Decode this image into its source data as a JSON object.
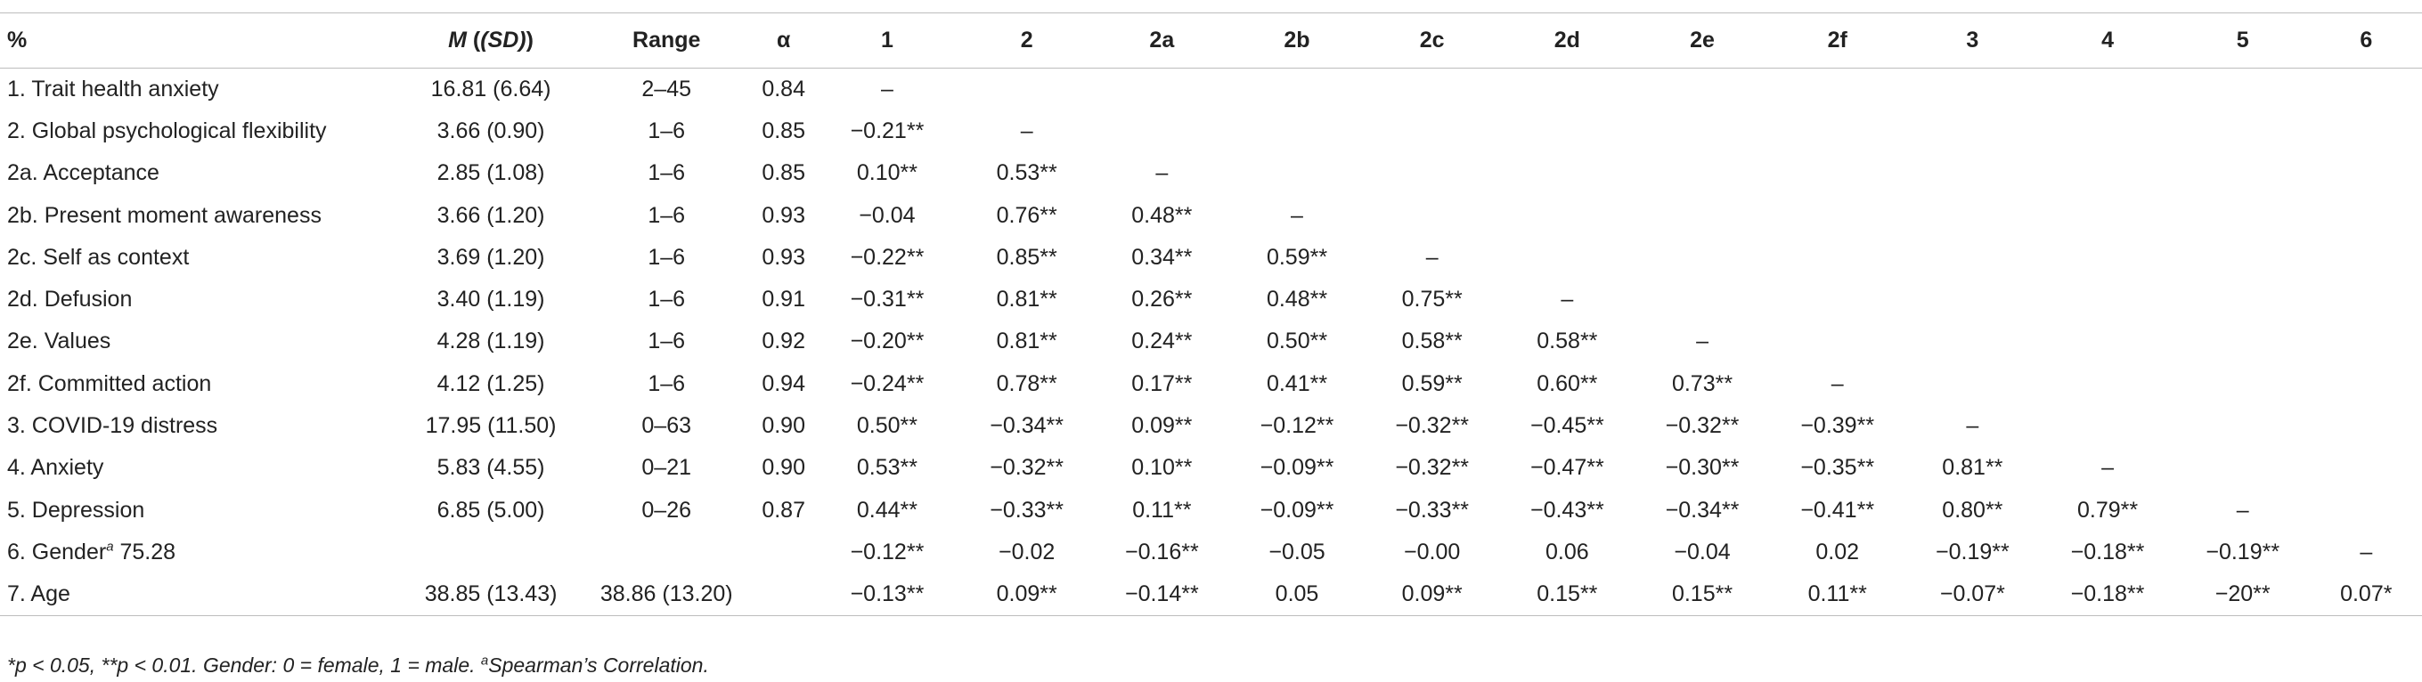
{
  "table": {
    "headers": [
      "%",
      "M",
      "(SD)",
      "Range",
      "α",
      "1",
      "2",
      "2a",
      "2b",
      "2c",
      "2d",
      "2e",
      "2f",
      "3",
      "4",
      "5",
      "6"
    ],
    "rows": [
      {
        "label": "1. Trait health anxiety",
        "msd": "16.81 (6.64)",
        "range": "2–45",
        "alpha": "0.84",
        "c": [
          "–",
          "",
          "",
          "",
          "",
          "",
          "",
          "",
          "",
          "",
          "",
          ""
        ]
      },
      {
        "label": "2. Global psychological flexibility",
        "msd": "3.66 (0.90)",
        "range": "1–6",
        "alpha": "0.85",
        "c": [
          "−0.21**",
          "–",
          "",
          "",
          "",
          "",
          "",
          "",
          "",
          "",
          "",
          ""
        ]
      },
      {
        "label": "2a. Acceptance",
        "msd": "2.85 (1.08)",
        "range": "1–6",
        "alpha": "0.85",
        "c": [
          "0.10**",
          "0.53**",
          "–",
          "",
          "",
          "",
          "",
          "",
          "",
          "",
          "",
          ""
        ]
      },
      {
        "label": "2b. Present moment awareness",
        "msd": "3.66 (1.20)",
        "range": "1–6",
        "alpha": "0.93",
        "c": [
          "−0.04",
          "0.76**",
          "0.48**",
          "–",
          "",
          "",
          "",
          "",
          "",
          "",
          "",
          ""
        ]
      },
      {
        "label": "2c. Self as context",
        "msd": "3.69 (1.20)",
        "range": "1–6",
        "alpha": "0.93",
        "c": [
          "−0.22**",
          "0.85**",
          "0.34**",
          "0.59**",
          "–",
          "",
          "",
          "",
          "",
          "",
          "",
          ""
        ]
      },
      {
        "label": "2d. Defusion",
        "msd": "3.40 (1.19)",
        "range": "1–6",
        "alpha": "0.91",
        "c": [
          "−0.31**",
          "0.81**",
          "0.26**",
          "0.48**",
          "0.75**",
          "–",
          "",
          "",
          "",
          "",
          "",
          ""
        ]
      },
      {
        "label": "2e. Values",
        "msd": "4.28 (1.19)",
        "range": "1–6",
        "alpha": "0.92",
        "c": [
          "−0.20**",
          "0.81**",
          "0.24**",
          "0.50**",
          "0.58**",
          "0.58**",
          "–",
          "",
          "",
          "",
          "",
          ""
        ]
      },
      {
        "label": "2f. Committed action",
        "msd": "4.12 (1.25)",
        "range": "1–6",
        "alpha": "0.94",
        "c": [
          "−0.24**",
          "0.78**",
          "0.17**",
          "0.41**",
          "0.59**",
          "0.60**",
          "0.73**",
          "–",
          "",
          "",
          "",
          ""
        ]
      },
      {
        "label": "3. COVID-19 distress",
        "msd": "17.95 (11.50)",
        "range": "0–63",
        "alpha": "0.90",
        "c": [
          "0.50**",
          "−0.34**",
          "0.09**",
          "−0.12**",
          "−0.32**",
          "−0.45**",
          "−0.32**",
          "−0.39**",
          "–",
          "",
          "",
          ""
        ]
      },
      {
        "label": "4. Anxiety",
        "msd": "5.83 (4.55)",
        "range": "0–21",
        "alpha": "0.90",
        "c": [
          "0.53**",
          "−0.32**",
          "0.10**",
          "−0.09**",
          "−0.32**",
          "−0.47**",
          "−0.30**",
          "−0.35**",
          "0.81**",
          "–",
          "",
          ""
        ]
      },
      {
        "label": "5. Depression",
        "msd": "6.85 (5.00)",
        "range": "0–26",
        "alpha": "0.87",
        "c": [
          "0.44**",
          "−0.33**",
          "0.11**",
          "−0.09**",
          "−0.33**",
          "−0.43**",
          "−0.34**",
          "−0.41**",
          "0.80**",
          "0.79**",
          "–",
          ""
        ]
      },
      {
        "label": "6. Gender",
        "label_sup": "a",
        "label_suffix": " 75.28",
        "msd": "",
        "range": "",
        "alpha": "",
        "c": [
          "−0.12**",
          "−0.02",
          "−0.16**",
          "−0.05",
          "−0.00",
          "0.06",
          "−0.04",
          "0.02",
          "−0.19**",
          "−0.18**",
          "−0.19**",
          "–"
        ]
      },
      {
        "label": "7. Age",
        "msd": "38.85 (13.43)",
        "range": "38.86 (13.20)",
        "alpha": "",
        "c": [
          "−0.13**",
          "0.09**",
          "−0.14**",
          "0.05",
          "0.09**",
          "0.15**",
          "0.15**",
          "0.11**",
          "−0.07*",
          "−0.18**",
          "−20**",
          "0.07*"
        ]
      }
    ]
  },
  "footnote": {
    "main": "*p < 0.05, **p < 0.01. Gender: 0 = female, 1 = male. ",
    "sup": "a",
    "tail": "Spearman’s Correlation."
  }
}
